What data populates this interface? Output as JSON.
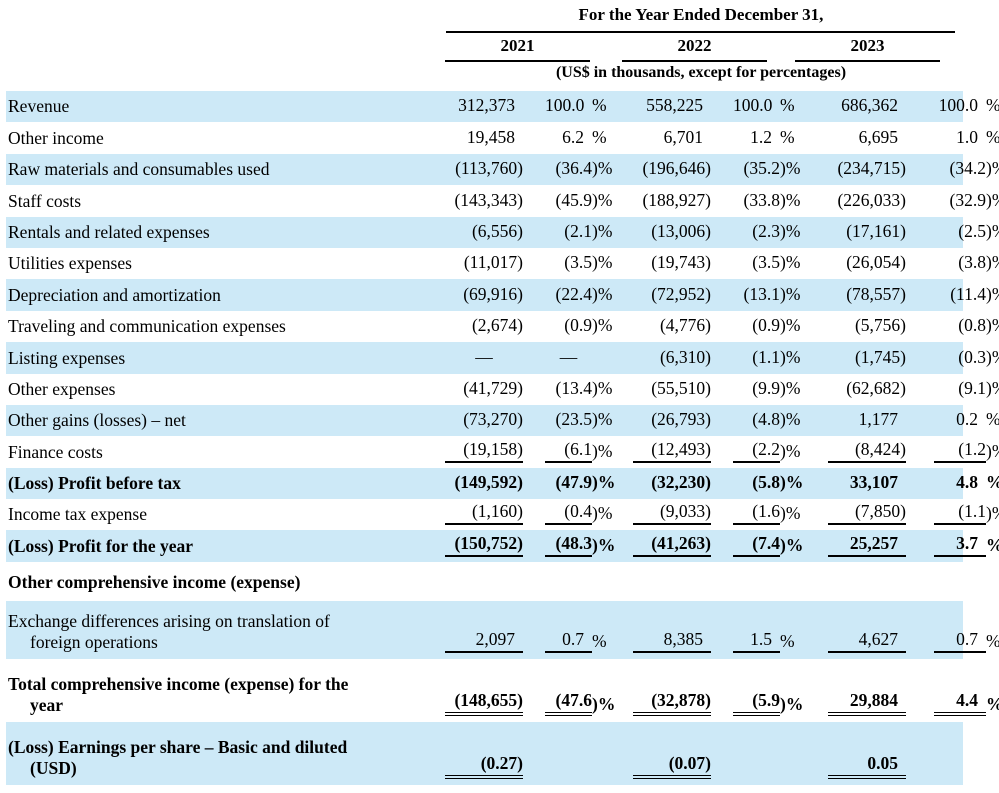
{
  "table": {
    "title": "For the Year Ended December 31,",
    "unit_note": "(US$ in thousands, except for percentages)",
    "years": [
      "2021",
      "2022",
      "2023"
    ],
    "columns": [
      "2021 Amount",
      "2021 %",
      "2022 Amount",
      "2022 %",
      "2023 Amount",
      "2023 %"
    ],
    "colors": {
      "stripe": "#cde9f7",
      "text": "#000000",
      "rule": "#000000"
    },
    "rows": [
      {
        "label": "Revenue",
        "values": [
          "312,373",
          "100.0%",
          "558,225",
          "100.0%",
          "686,362",
          "100.0%"
        ]
      },
      {
        "label": "Other income",
        "values": [
          "19,458",
          "6.2%",
          "6,701",
          "1.2%",
          "6,695",
          "1.0%"
        ]
      },
      {
        "label": "Raw materials and consumables used",
        "values": [
          "(113,760)",
          "(36.4)%",
          "(196,646)",
          "(35.2)%",
          "(234,715)",
          "(34.2)%"
        ]
      },
      {
        "label": "Staff costs",
        "values": [
          "(143,343)",
          "(45.9)%",
          "(188,927)",
          "(33.8)%",
          "(226,033)",
          "(32.9)%"
        ]
      },
      {
        "label": "Rentals and related expenses",
        "values": [
          "(6,556)",
          "(2.1)%",
          "(13,006)",
          "(2.3)%",
          "(17,161)",
          "(2.5)%"
        ]
      },
      {
        "label": "Utilities expenses",
        "values": [
          "(11,017)",
          "(3.5)%",
          "(19,743)",
          "(3.5)%",
          "(26,054)",
          "(3.8)%"
        ]
      },
      {
        "label": "Depreciation and amortization",
        "values": [
          "(69,916)",
          "(22.4)%",
          "(72,952)",
          "(13.1)%",
          "(78,557)",
          "(11.4)%"
        ]
      },
      {
        "label": "Traveling and communication expenses",
        "values": [
          "(2,674)",
          "(0.9)%",
          "(4,776)",
          "(0.9)%",
          "(5,756)",
          "(0.8)%"
        ]
      },
      {
        "label": "Listing expenses",
        "values": [
          "—",
          "—",
          "(6,310)",
          "(1.1)%",
          "(1,745)",
          "(0.3)%"
        ]
      },
      {
        "label": "Other expenses",
        "values": [
          "(41,729)",
          "(13.4)%",
          "(55,510)",
          "(9.9)%",
          "(62,682)",
          "(9.1)%"
        ]
      },
      {
        "label": "Other gains (losses) – net",
        "values": [
          "(73,270)",
          "(23.5)%",
          "(26,793)",
          "(4.8)%",
          "1,177",
          "0.2%"
        ]
      },
      {
        "label": "Finance costs",
        "values": [
          "(19,158)",
          "(6.1)%",
          "(12,493)",
          "(2.2)%",
          "(8,424)",
          "(1.2)%"
        ],
        "underline": "single"
      },
      {
        "label": "(Loss) Profit before tax",
        "bold": true,
        "values": [
          "(149,592)",
          "(47.9)%",
          "(32,230)",
          "(5.8)%",
          "33,107",
          "4.8%"
        ]
      },
      {
        "label": "Income tax expense",
        "values": [
          "(1,160)",
          "(0.4)%",
          "(9,033)",
          "(1.6)%",
          "(7,850)",
          "(1.1)%"
        ],
        "underline": "single"
      },
      {
        "label": "(Loss) Profit for the year",
        "bold": true,
        "values": [
          "(150,752)",
          "(48.3)%",
          "(41,263)",
          "(7.4)%",
          "25,257",
          "3.7%"
        ],
        "underline": "single"
      },
      {
        "label": "Other comprehensive income (expense)",
        "bold": true,
        "section": true,
        "values": [
          "",
          "",
          "",
          "",
          "",
          ""
        ]
      },
      {
        "label": "Exchange differences arising on translation of",
        "label2": "foreign operations",
        "values": [
          "2,097",
          "0.7%",
          "8,385",
          "1.5%",
          "4,627",
          "0.7%"
        ],
        "underline": "single"
      },
      {
        "label": "Total comprehensive income (expense) for the",
        "label2": "year",
        "bold": true,
        "values": [
          "(148,655)",
          "(47.6)%",
          "(32,878)",
          "(5.9)%",
          "29,884",
          "4.4%"
        ],
        "underline": "double"
      },
      {
        "label": "(Loss) Earnings per share – Basic and diluted",
        "label2": "(USD)",
        "bold": true,
        "values": [
          "(0.27)",
          "",
          "(0.07)",
          "",
          "0.05",
          ""
        ],
        "underline": "double",
        "underline_cols": "amounts"
      }
    ]
  }
}
